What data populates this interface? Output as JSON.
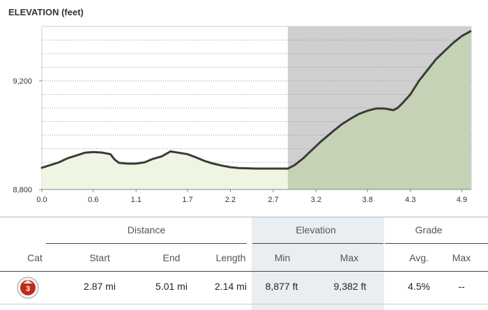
{
  "chart_data": {
    "type": "area",
    "title": "ELEVATION (feet)",
    "xlabel": "",
    "ylabel": "",
    "x_ticks": [
      "0.0",
      "0.6",
      "1.1",
      "1.7",
      "2.2",
      "2.7",
      "3.2",
      "3.8",
      "4.3",
      "4.9"
    ],
    "y_ticks": [
      "9,200",
      "8,800"
    ],
    "xlim": [
      0.0,
      5.01
    ],
    "ylim": [
      8800,
      9400
    ],
    "highlight_range": [
      2.87,
      5.01
    ],
    "grid": true,
    "series": [
      {
        "x": [
          0.0,
          0.1,
          0.2,
          0.3,
          0.4,
          0.5,
          0.6,
          0.7,
          0.8,
          0.85,
          0.9,
          1.0,
          1.1,
          1.2,
          1.3,
          1.4,
          1.5,
          1.6,
          1.7,
          1.8,
          1.9,
          2.0,
          2.1,
          2.2,
          2.3,
          2.4,
          2.5,
          2.6,
          2.7,
          2.8,
          2.87,
          2.95,
          3.05,
          3.15,
          3.25,
          3.4,
          3.5,
          3.6,
          3.7,
          3.8,
          3.9,
          4.0,
          4.1,
          4.15,
          4.2,
          4.3,
          4.4,
          4.5,
          4.6,
          4.7,
          4.8,
          4.9,
          5.0
        ],
        "y": [
          8880,
          8890,
          8900,
          8915,
          8925,
          8935,
          8938,
          8936,
          8930,
          8910,
          8898,
          8895,
          8895,
          8900,
          8913,
          8922,
          8940,
          8935,
          8930,
          8918,
          8905,
          8895,
          8888,
          8882,
          8879,
          8878,
          8877,
          8877,
          8877,
          8877,
          8877,
          8890,
          8915,
          8945,
          8975,
          9015,
          9040,
          9060,
          9078,
          9090,
          9098,
          9098,
          9092,
          9100,
          9115,
          9150,
          9200,
          9240,
          9280,
          9310,
          9340,
          9365,
          9382
        ]
      }
    ]
  },
  "stats": {
    "group_distance": "Distance",
    "group_elevation": "Elevation",
    "group_grade": "Grade",
    "col_cat": "Cat",
    "col_start": "Start",
    "col_end": "End",
    "col_length": "Length",
    "col_min": "Min",
    "col_max": "Max",
    "col_avg": "Avg.",
    "col_grade_max": "Max",
    "cat_value": "3",
    "start": "2.87 mi",
    "end": "5.01 mi",
    "length": "2.14 mi",
    "elev_min": "8,877 ft",
    "elev_max": "9,382 ft",
    "grade_avg": "4.5%",
    "grade_max": "--",
    "colors": {
      "fill_before": "#eef5e2",
      "fill_after": "#c5d2b6",
      "highlight_bg": "#cfcfcf",
      "line": "#3a3a3a",
      "badge": "#c02a1c"
    }
  }
}
